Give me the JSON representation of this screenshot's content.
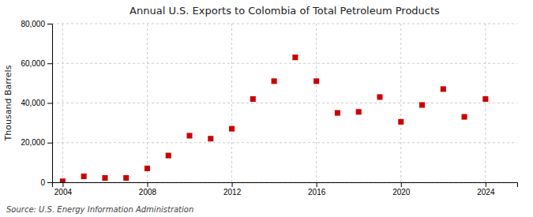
{
  "chart_data": {
    "type": "scatter",
    "title": "Annual U.S. Exports to Colombia of Total Petroleum Products",
    "ylabel": "Thousand Barrels",
    "source": "Source: U.S. Energy Information Administration",
    "x": [
      2004,
      2005,
      2006,
      2007,
      2008,
      2009,
      2010,
      2011,
      2012,
      2013,
      2014,
      2015,
      2016,
      2017,
      2018,
      2019,
      2020,
      2021,
      2022,
      2023,
      2024
    ],
    "values": [
      500,
      3000,
      2200,
      2200,
      7000,
      13500,
      23500,
      22000,
      27000,
      42000,
      51000,
      63000,
      51000,
      35000,
      35500,
      43000,
      30500,
      39000,
      47000,
      33000,
      42000
    ],
    "color": "#cc0000",
    "marker": "square",
    "xlim": [
      2003.5,
      2025.5
    ],
    "ylim": [
      0,
      80000
    ],
    "xticks": [
      2004,
      2008,
      2012,
      2016,
      2020,
      2024
    ],
    "yticks": [
      0,
      {
        "value": 20000,
        "label": "20,000"
      },
      {
        "value": 40000,
        "label": "40,000"
      },
      {
        "value": 60000,
        "label": "60,000"
      },
      {
        "value": 80000,
        "label": "80,000"
      }
    ],
    "grid": true
  }
}
